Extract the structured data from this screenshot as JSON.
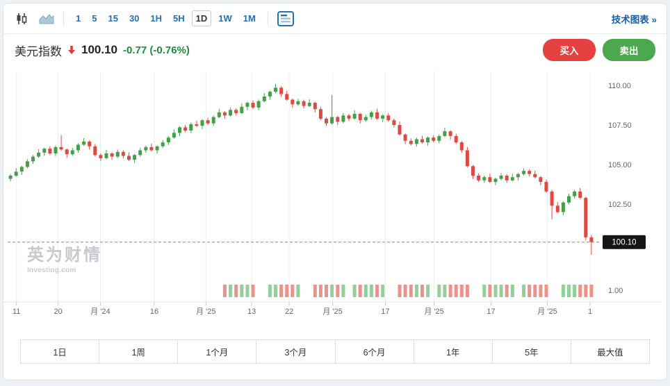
{
  "toolbar": {
    "icons": {
      "candlestick": "candlestick-icon",
      "area": "area-chart-icon",
      "panel": "panel-icon"
    },
    "intervals": [
      "1",
      "5",
      "15",
      "30",
      "1H",
      "5H",
      "1D",
      "1W",
      "1M"
    ],
    "active_interval": "1D",
    "link_label": "技术图表 »"
  },
  "header": {
    "symbol": "美元指数",
    "price": "100.10",
    "change": "-0.77 (-0.76%)",
    "buy_label": "买入",
    "sell_label": "卖出"
  },
  "watermark": {
    "title": "英为财情",
    "subtitle": "Investing.com"
  },
  "range_buttons": [
    "1日",
    "1周",
    "1个月",
    "3个月",
    "6个月",
    "1年",
    "5年",
    "最大值"
  ],
  "colors": {
    "up": "#43a047",
    "down": "#dc4b41",
    "vol_up": "#94cf9a",
    "vol_down": "#eb938b",
    "buy": "#e64141",
    "sell": "#4ca84f",
    "accent_blue": "#2470b3",
    "change_text": "#1f8a3b",
    "arrow_red": "#e23b3b",
    "last_price_bg": "#151515",
    "grid": "#ededed",
    "axis_text": "#5f6770"
  },
  "chart_data": {
    "type": "candlestick",
    "title": "美元指数 1D",
    "last_price": 100.1,
    "change": -0.77,
    "change_pct": "-0.76%",
    "ylim": [
      99.0,
      110.8
    ],
    "y_ticks": [
      110.0,
      107.5,
      105.0,
      102.5
    ],
    "volume_axis_label": "1.00",
    "x_labels": [
      {
        "label": "11",
        "pos": 0.015
      },
      {
        "label": "20",
        "pos": 0.086
      },
      {
        "label": "月 '24",
        "pos": 0.158
      },
      {
        "label": "16",
        "pos": 0.25
      },
      {
        "label": "月 '25",
        "pos": 0.338
      },
      {
        "label": "13",
        "pos": 0.416
      },
      {
        "label": "22",
        "pos": 0.48
      },
      {
        "label": "月 '25",
        "pos": 0.554
      },
      {
        "label": "17",
        "pos": 0.644
      },
      {
        "label": "月 '25",
        "pos": 0.727
      },
      {
        "label": "17",
        "pos": 0.824
      },
      {
        "label": "月 '25",
        "pos": 0.92
      },
      {
        "label": "1",
        "pos": 0.993
      }
    ],
    "first_open": 104.1,
    "closes": [
      104.3,
      104.55,
      104.85,
      105.2,
      105.5,
      105.75,
      106.0,
      105.7,
      106.1,
      105.95,
      105.65,
      105.9,
      106.25,
      106.45,
      106.15,
      105.6,
      105.4,
      105.7,
      105.5,
      105.8,
      105.55,
      105.3,
      105.6,
      105.9,
      106.1,
      105.9,
      106.15,
      106.4,
      106.7,
      107.0,
      107.35,
      107.15,
      107.55,
      107.45,
      107.8,
      107.6,
      108.0,
      108.3,
      108.1,
      108.45,
      108.25,
      108.65,
      108.9,
      108.6,
      109.0,
      109.3,
      109.6,
      109.85,
      109.45,
      109.1,
      108.8,
      109.0,
      108.7,
      108.9,
      108.5,
      107.9,
      107.6,
      108.0,
      107.7,
      108.1,
      107.9,
      108.2,
      107.8,
      108.0,
      108.3,
      107.9,
      108.1,
      107.8,
      107.5,
      106.9,
      106.5,
      106.3,
      106.6,
      106.4,
      106.7,
      106.5,
      106.8,
      107.1,
      106.8,
      106.4,
      105.9,
      104.9,
      104.3,
      104.0,
      104.2,
      103.9,
      104.1,
      104.3,
      104.0,
      104.2,
      104.4,
      104.6,
      104.4,
      104.2,
      103.9,
      103.3,
      102.4,
      102.0,
      102.6,
      103.0,
      103.3,
      102.9,
      100.4,
      100.1
    ],
    "wick_overrides": {
      "9": {
        "h": 106.85
      },
      "47": {
        "h": 110.1
      },
      "57": {
        "h": 109.4
      },
      "96": {
        "l": 101.55
      },
      "102": {
        "l": 100.2
      },
      "103": {
        "l": 99.3
      }
    },
    "volume_start_index": 38,
    "volume_gap_indices": [
      44,
      45,
      52,
      53,
      60,
      67,
      68,
      75,
      82,
      83,
      90,
      96,
      97
    ],
    "grid": "vertical",
    "legend": "none"
  }
}
